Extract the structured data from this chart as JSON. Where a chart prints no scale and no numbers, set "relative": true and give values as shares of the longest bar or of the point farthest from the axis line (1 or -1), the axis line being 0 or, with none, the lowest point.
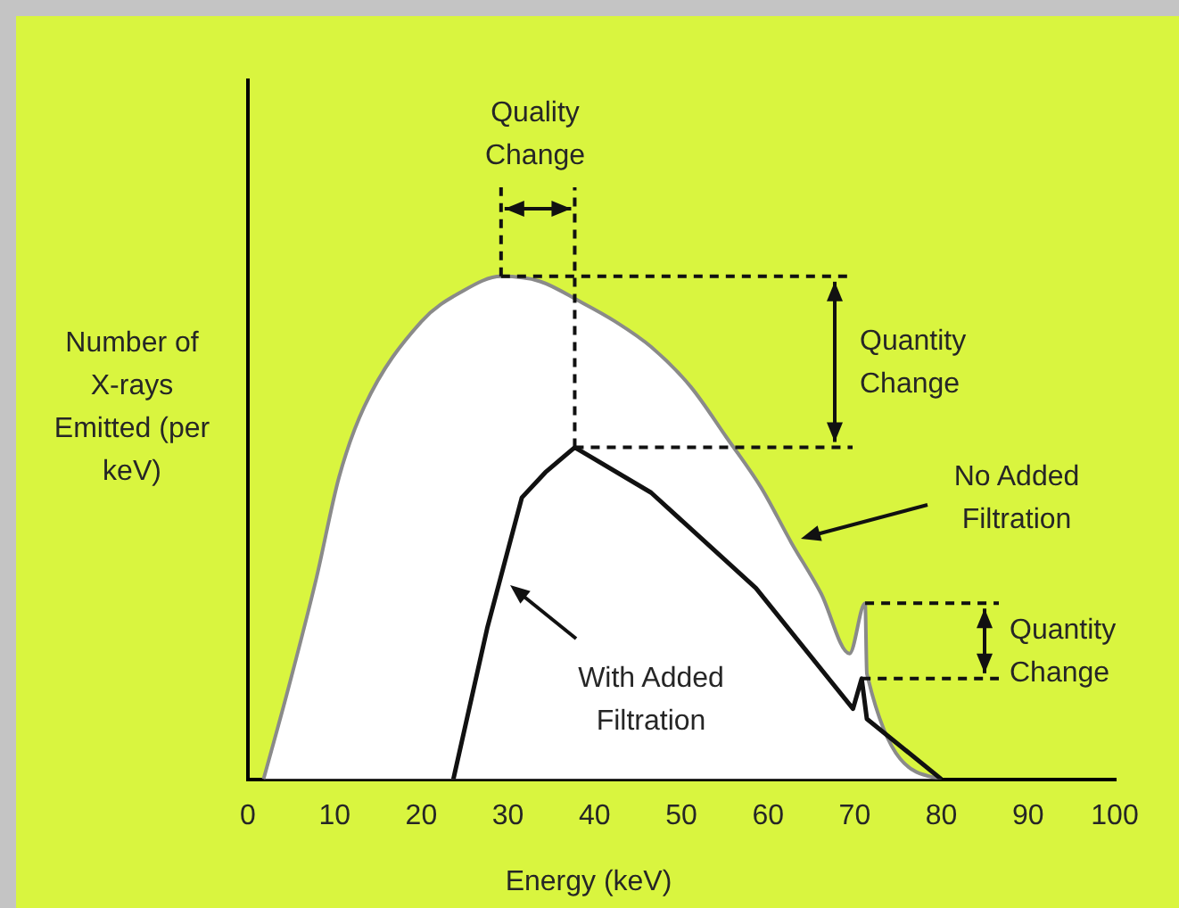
{
  "chart_data": {
    "type": "area",
    "relative": true,
    "xlabel": "Energy (keV)",
    "ylabel": "Number of X-rays Emitted (per keV)",
    "xlim": [
      0,
      100
    ],
    "xticks": [
      0,
      10,
      20,
      30,
      40,
      50,
      60,
      70,
      80,
      90,
      100
    ],
    "series": [
      {
        "color": "#8a8a8a",
        "x": [
          1.8,
          4.5,
          7.9,
          10.5,
          13.4,
          20,
          24.7,
          29.2,
          33.7,
          38.3,
          42.4,
          46.5,
          51.1,
          55.2,
          59.2,
          62.7,
          66.1,
          69.4,
          71.2,
          71.4,
          80
        ],
        "values": [
          0,
          0.17,
          0.4,
          0.6,
          0.74,
          0.91,
          0.97,
          1,
          0.99,
          0.95,
          0.91,
          0.86,
          0.78,
          0.68,
          0.58,
          0.47,
          0.37,
          0.25,
          0.35,
          0.21,
          0
        ]
      },
      {
        "type": "line",
        "color": "#111111",
        "x": [
          23.7,
          27.6,
          31.6,
          34.3,
          37.7,
          46.5,
          58.6,
          69.8,
          70.8,
          71.4,
          80
        ],
        "values": [
          0,
          0.3,
          0.56,
          0.61,
          0.66,
          0.57,
          0.38,
          0.14,
          0.2,
          0.12,
          0
        ]
      }
    ],
    "annotations": [
      "Quality Change",
      "Quantity Change",
      "No Added Filtration",
      "With Added Filtration",
      "Quantity Change"
    ]
  }
}
